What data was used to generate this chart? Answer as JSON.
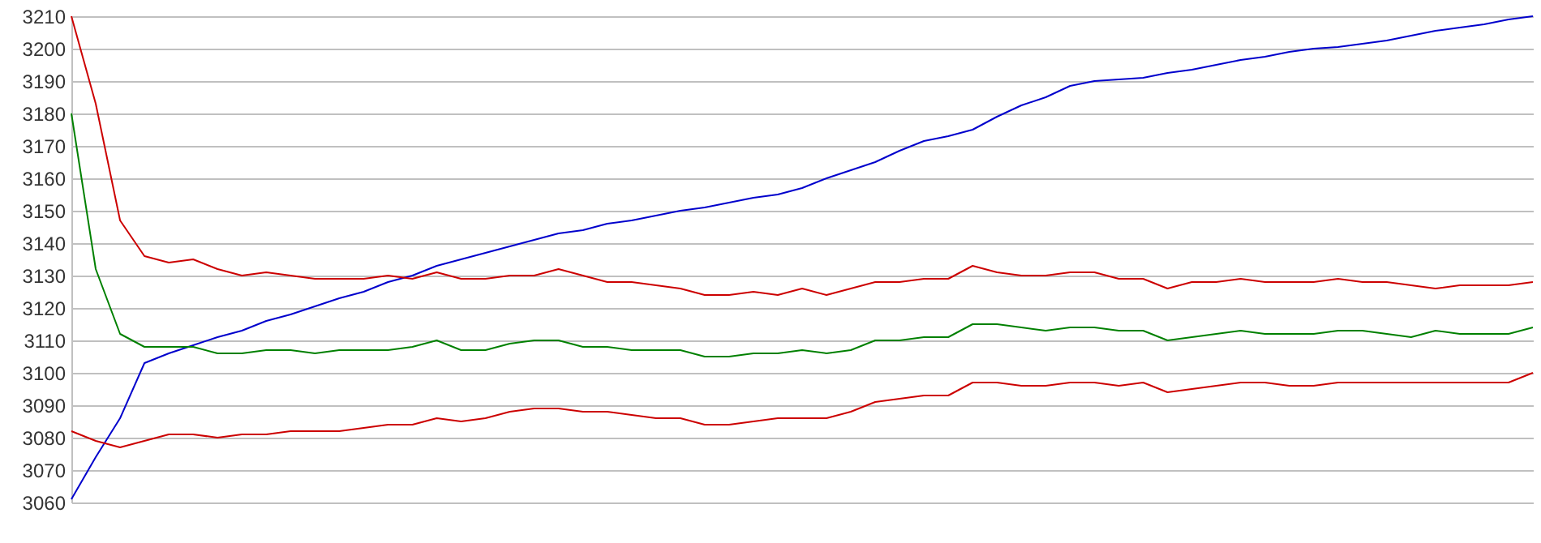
{
  "chart_data": {
    "type": "line",
    "categories": [
      null,
      null,
      null,
      null,
      null,
      null,
      null,
      null,
      null,
      null,
      null,
      null,
      null,
      null,
      null,
      null,
      null,
      null,
      null,
      null,
      null,
      null,
      null,
      null,
      null,
      null,
      null,
      null,
      null,
      null,
      null,
      null,
      null,
      null,
      null,
      null,
      null,
      null,
      null,
      null,
      null,
      null,
      null,
      null,
      null,
      null,
      null,
      null,
      null,
      null,
      null,
      null,
      null,
      null,
      null,
      null,
      null,
      null,
      null,
      null,
      null
    ],
    "series": [
      {
        "color": "#0000cc",
        "values": [
          3061,
          3074,
          3086,
          3103,
          3106,
          3108.5,
          3111,
          3113,
          3116,
          3118,
          3120.5,
          3123,
          3125,
          3128,
          3130,
          3133,
          3135,
          3137,
          3139,
          3141,
          3143,
          3144,
          3146,
          3147,
          3148.5,
          3150,
          3151,
          3152.5,
          3154,
          3155,
          3157,
          3160,
          3162.5,
          3165,
          3168.5,
          3171.5,
          3173,
          3175,
          3179,
          3182.5,
          3185,
          3188.5,
          3190,
          3190.5,
          3191,
          3192.5,
          3193.5,
          3195,
          3196.5,
          3197.5,
          3199,
          3200,
          3200.5,
          3201.5,
          3202.5,
          3204,
          3205.5,
          3206.5,
          3207.5,
          3209,
          3210
        ]
      },
      {
        "color": "#cc0000",
        "values": [
          3210,
          3183,
          3147,
          3136,
          3134,
          3135,
          3132,
          3130,
          3131,
          3130,
          3129,
          3129,
          3129,
          3130,
          3129,
          3131,
          3129,
          3129,
          3130,
          3130,
          3132,
          3130,
          3128,
          3128,
          3127,
          3126,
          3124,
          3124,
          3125,
          3124,
          3126,
          3124,
          3126,
          3128,
          3128,
          3129,
          3129,
          3133,
          3131,
          3130,
          3130,
          3131,
          3131,
          3129,
          3129,
          3126,
          3128,
          3128,
          3129,
          3128,
          3128,
          3128,
          3129,
          3128,
          3128,
          3127,
          3126,
          3127,
          3127,
          3127,
          3128
        ]
      },
      {
        "color": "#008000",
        "values": [
          3180,
          3132,
          3112,
          3108,
          3108,
          3108,
          3106,
          3106,
          3107,
          3107,
          3106,
          3107,
          3107,
          3107,
          3108,
          3110,
          3107,
          3107,
          3109,
          3110,
          3110,
          3108,
          3108,
          3107,
          3107,
          3107,
          3105,
          3105,
          3106,
          3106,
          3107,
          3106,
          3107,
          3110,
          3110,
          3111,
          3111,
          3115,
          3115,
          3114,
          3113,
          3114,
          3114,
          3113,
          3113,
          3110,
          3111,
          3112,
          3113,
          3112,
          3112,
          3112,
          3113,
          3113,
          3112,
          3111,
          3113,
          3112,
          3112,
          3112,
          3114
        ]
      },
      {
        "color": "#cc0000",
        "values": [
          3082,
          3079,
          3077,
          3079,
          3081,
          3081,
          3080,
          3081,
          3081,
          3082,
          3082,
          3082,
          3083,
          3084,
          3084,
          3086,
          3085,
          3086,
          3088,
          3089,
          3089,
          3088,
          3088,
          3087,
          3086,
          3086,
          3084,
          3084,
          3085,
          3086,
          3086,
          3086,
          3088,
          3091,
          3092,
          3093,
          3093,
          3097,
          3097,
          3096,
          3096,
          3097,
          3097,
          3096,
          3097,
          3094,
          3095,
          3096,
          3097,
          3097,
          3096,
          3096,
          3097,
          3097,
          3097,
          3097,
          3097,
          3097,
          3097,
          3097,
          3100
        ]
      }
    ],
    "ylim": [
      3060,
      3210
    ],
    "yticks": [
      3060,
      3070,
      3080,
      3090,
      3100,
      3110,
      3120,
      3130,
      3140,
      3150,
      3160,
      3170,
      3180,
      3190,
      3200,
      3210
    ],
    "grid": "y",
    "tick_labels": "y"
  }
}
